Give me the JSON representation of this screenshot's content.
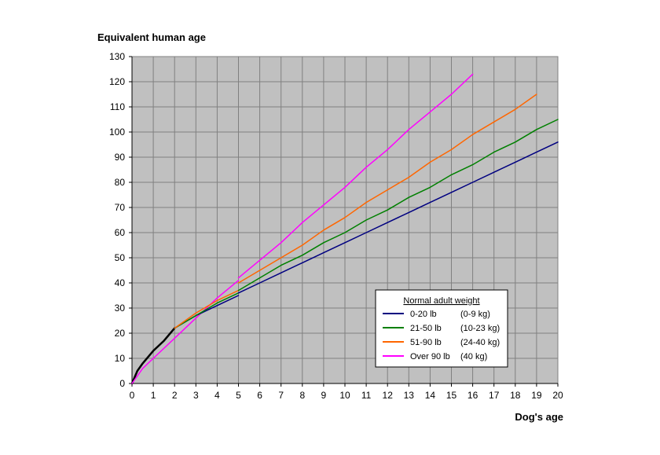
{
  "chart_data": {
    "type": "line",
    "ylabel": "Equivalent human age",
    "xlabel": "Dog's age",
    "xlim": [
      0,
      20
    ],
    "ylim": [
      0,
      130
    ],
    "xticks": [
      0,
      1,
      2,
      3,
      4,
      5,
      6,
      7,
      8,
      9,
      10,
      11,
      12,
      13,
      14,
      15,
      16,
      17,
      18,
      19,
      20
    ],
    "yticks": [
      0,
      10,
      20,
      30,
      40,
      50,
      60,
      70,
      80,
      90,
      100,
      110,
      120,
      130
    ],
    "grid": true,
    "plot_background": "#c0c0c0",
    "legend": {
      "title": "Normal adult weight",
      "placement": "bottom-right",
      "entries": [
        {
          "label": "0-20 lb",
          "metric": "(0-9 kg)",
          "color": "#000080"
        },
        {
          "label": "21-50 lb",
          "metric": "(10-23 kg)",
          "color": "#008000"
        },
        {
          "label": "51-90 lb",
          "metric": "(24-40 kg)",
          "color": "#ff6600"
        },
        {
          "label": "Over 90 lb",
          "metric": "(40 kg)",
          "color": "#ff00ff"
        }
      ]
    },
    "series": [
      {
        "color": "#000000",
        "width": 2.5,
        "x": [
          0,
          0.25,
          0.5,
          1,
          1.5,
          2
        ],
        "y": [
          0,
          5,
          8,
          13,
          17,
          22
        ]
      },
      {
        "color": "#ff00ff",
        "width": 1.5,
        "x": [
          0,
          0.5,
          1,
          2,
          3,
          4,
          5
        ],
        "y": [
          0,
          6,
          10,
          18,
          26,
          34,
          41
        ]
      },
      {
        "color": "#000080",
        "width": 1.5,
        "x": [
          2,
          3,
          4,
          5
        ],
        "y": [
          22,
          27,
          31,
          35
        ]
      },
      {
        "color": "#008000",
        "width": 1.5,
        "x": [
          2,
          3,
          4,
          5
        ],
        "y": [
          22,
          27,
          32,
          36
        ]
      },
      {
        "color": "#ff6600",
        "width": 1.5,
        "x": [
          2,
          3,
          4,
          5
        ],
        "y": [
          22,
          28,
          33,
          37
        ]
      },
      {
        "color": "#000080",
        "width": 1.5,
        "x": [
          5,
          6,
          7,
          8,
          9,
          10,
          11,
          12,
          13,
          14,
          15,
          16,
          17,
          18,
          19,
          20
        ],
        "y": [
          36,
          40,
          44,
          48,
          52,
          56,
          60,
          64,
          68,
          72,
          76,
          80,
          84,
          88,
          92,
          96
        ]
      },
      {
        "color": "#008000",
        "width": 1.5,
        "x": [
          5,
          6,
          7,
          8,
          9,
          10,
          11,
          12,
          13,
          14,
          15,
          16,
          17,
          18,
          19,
          20
        ],
        "y": [
          37,
          42,
          47,
          51,
          56,
          60,
          65,
          69,
          74,
          78,
          83,
          87,
          92,
          96,
          101,
          105
        ]
      },
      {
        "color": "#ff6600",
        "width": 1.5,
        "x": [
          5,
          6,
          7,
          8,
          9,
          10,
          11,
          12,
          13,
          14,
          15,
          16,
          17,
          18,
          19
        ],
        "y": [
          40,
          45,
          50,
          55,
          61,
          66,
          72,
          77,
          82,
          88,
          93,
          99,
          104,
          109,
          115
        ]
      },
      {
        "color": "#ff00ff",
        "width": 1.5,
        "x": [
          5,
          6,
          7,
          8,
          9,
          10,
          11,
          12,
          13,
          14,
          15,
          16
        ],
        "y": [
          42,
          49,
          56,
          64,
          71,
          78,
          86,
          93,
          101,
          108,
          115,
          123
        ]
      }
    ]
  }
}
